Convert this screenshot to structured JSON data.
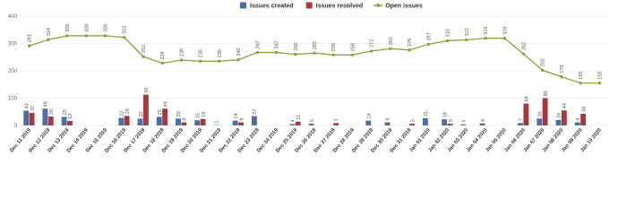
{
  "chart_data": {
    "type": "bar-line",
    "categories": [
      "Dec 11 2019",
      "Dec 12 2019",
      "Dec 13 2019",
      "Dec 14 2019",
      "Dec 15 2019",
      "Dec 16 2019",
      "Dec 17 2019",
      "Dec 18 2019",
      "Dec 19 2019",
      "Dec 20 2019",
      "Dec 21 2019",
      "Dec 22 2019",
      "Dec 23 2019",
      "Dec 24 2019",
      "Dec 25 2019",
      "Dec 26 2019",
      "Dec 27 2019",
      "Dec 28 2019",
      "Dec 29 2019",
      "Dec 30 2019",
      "Dec 31 2019",
      "Jan 01 2020",
      "Jan 02 2020",
      "Jan 03 2020",
      "Jan 04 2020",
      "Jan 05 2020",
      "Jan 06 2020",
      "Jan 07 2020",
      "Jan 08 2020",
      "Jan 09 2020",
      "Jan 10 2020"
    ],
    "series": [
      {
        "name": "Issues created",
        "color": "#4a6fa5",
        "type": "bar",
        "axis": "y2",
        "values": [
          43,
          49,
          25,
          0,
          0,
          22,
          20,
          25,
          20,
          15,
          1,
          14,
          27,
          0,
          4,
          5,
          0,
          0,
          14,
          9,
          0,
          21,
          18,
          3,
          6,
          0,
          7,
          20,
          16,
          9,
          0
        ]
      },
      {
        "name": "Issues resolved",
        "color": "#a8383b",
        "type": "bar",
        "axis": "y2",
        "values": [
          37,
          26,
          13,
          0,
          0,
          28,
          90,
          49,
          9,
          19,
          0,
          9,
          0,
          0,
          11,
          0,
          7,
          0,
          0,
          0,
          5,
          0,
          5,
          0,
          0,
          0,
          64,
          80,
          44,
          34,
          0
        ]
      },
      {
        "name": "Open issues",
        "color": "#8aa63a",
        "type": "line",
        "values": [
          291,
          314,
          328,
          328,
          328,
          322,
          252,
          228,
          239,
          235,
          235,
          240,
          267,
          267,
          260,
          265,
          258,
          258,
          272,
          281,
          276,
          297,
          310,
          313,
          319,
          319,
          262,
          202,
          178,
          155,
          155
        ]
      }
    ],
    "ylim": [
      0,
      400
    ],
    "yticks": [
      0,
      100,
      200,
      300,
      400
    ],
    "y2lim": [
      0,
      320
    ],
    "grid": true,
    "legend": "top"
  }
}
